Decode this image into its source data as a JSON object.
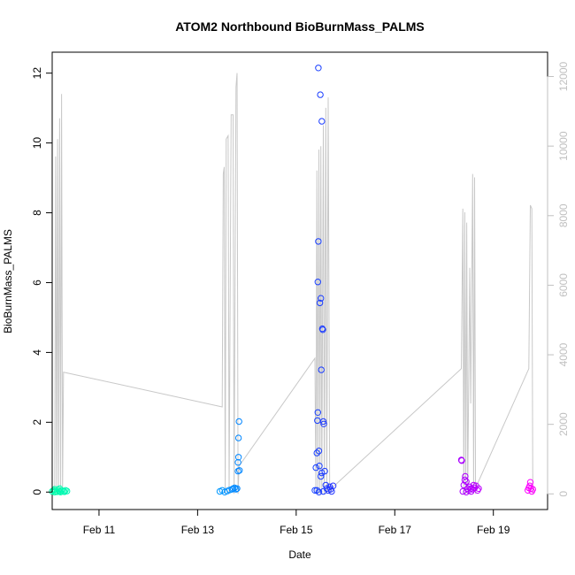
{
  "chart_data": {
    "type": "scatter",
    "title": "ATOM2 Northbound BioBurnMass_PALMS",
    "xlabel": "Date",
    "ylabel": "BioBurnMass_PALMS",
    "x_ticks": [
      "Feb 11",
      "Feb 13",
      "Feb 15",
      "Feb 17",
      "Feb 19"
    ],
    "x_tick_days": [
      11,
      13,
      15,
      17,
      19
    ],
    "xlim_days": [
      10.05,
      20.1
    ],
    "ylim": [
      -0.5,
      12.6
    ],
    "y_ticks": [
      0,
      2,
      4,
      6,
      8,
      10,
      12
    ],
    "y2lim": [
      -450,
      12700
    ],
    "y2_ticks": [
      0,
      2000,
      4000,
      6000,
      8000,
      10000,
      12000
    ],
    "y2_color": "#c0c0c0",
    "grid": false,
    "series": [
      {
        "kind": "points",
        "color_scale": [
          "#00ffaa",
          "#00c8ff",
          "#0050ff",
          "#7000ff",
          "#ff00ff"
        ],
        "points": [
          {
            "d": 10.05,
            "y": 0.02
          },
          {
            "d": 10.08,
            "y": 0.05
          },
          {
            "d": 10.1,
            "y": 0.0
          },
          {
            "d": 10.12,
            "y": 0.03
          },
          {
            "d": 10.15,
            "y": 0.01
          },
          {
            "d": 10.18,
            "y": 0.06
          },
          {
            "d": 10.2,
            "y": 0.02
          },
          {
            "d": 10.22,
            "y": 0.0
          },
          {
            "d": 10.25,
            "y": 0.04
          },
          {
            "d": 10.28,
            "y": 0.02
          },
          {
            "d": 10.3,
            "y": 0.01
          },
          {
            "d": 10.32,
            "y": 0.05
          },
          {
            "d": 10.35,
            "y": 0.03
          },
          {
            "d": 10.1,
            "y": 0.08
          },
          {
            "d": 10.2,
            "y": 0.1
          },
          {
            "d": 13.45,
            "y": 0.02
          },
          {
            "d": 13.5,
            "y": 0.05
          },
          {
            "d": 13.55,
            "y": 0.0
          },
          {
            "d": 13.6,
            "y": 0.03
          },
          {
            "d": 13.65,
            "y": 0.06
          },
          {
            "d": 13.7,
            "y": 0.08
          },
          {
            "d": 13.72,
            "y": 0.1
          },
          {
            "d": 13.75,
            "y": 0.12
          },
          {
            "d": 13.78,
            "y": 0.08
          },
          {
            "d": 13.8,
            "y": 0.1
          },
          {
            "d": 13.82,
            "y": 0.6
          },
          {
            "d": 13.82,
            "y": 0.85
          },
          {
            "d": 13.83,
            "y": 1.0
          },
          {
            "d": 13.83,
            "y": 1.55
          },
          {
            "d": 13.84,
            "y": 2.02
          },
          {
            "d": 13.85,
            "y": 0.62
          },
          {
            "d": 15.38,
            "y": 0.05
          },
          {
            "d": 15.4,
            "y": 0.7
          },
          {
            "d": 15.42,
            "y": 1.12
          },
          {
            "d": 15.43,
            "y": 2.05
          },
          {
            "d": 15.44,
            "y": 2.28
          },
          {
            "d": 15.44,
            "y": 6.02
          },
          {
            "d": 15.45,
            "y": 7.18
          },
          {
            "d": 15.45,
            "y": 12.15
          },
          {
            "d": 15.46,
            "y": 1.18
          },
          {
            "d": 15.47,
            "y": 0.75
          },
          {
            "d": 15.48,
            "y": 5.42
          },
          {
            "d": 15.49,
            "y": 11.38
          },
          {
            "d": 15.5,
            "y": 5.55
          },
          {
            "d": 15.51,
            "y": 3.5
          },
          {
            "d": 15.52,
            "y": 10.62
          },
          {
            "d": 15.53,
            "y": 4.68
          },
          {
            "d": 15.54,
            "y": 4.65
          },
          {
            "d": 15.55,
            "y": 2.02
          },
          {
            "d": 15.56,
            "y": 1.95
          },
          {
            "d": 15.52,
            "y": 0.55
          },
          {
            "d": 15.5,
            "y": 0.45
          },
          {
            "d": 15.58,
            "y": 0.6
          },
          {
            "d": 15.6,
            "y": 0.2
          },
          {
            "d": 15.62,
            "y": 0.1
          },
          {
            "d": 15.65,
            "y": 0.05
          },
          {
            "d": 15.68,
            "y": 0.15
          },
          {
            "d": 15.7,
            "y": 0.08
          },
          {
            "d": 15.72,
            "y": 0.02
          },
          {
            "d": 15.75,
            "y": 0.18
          },
          {
            "d": 15.42,
            "y": 0.05
          },
          {
            "d": 15.46,
            "y": 0.0
          },
          {
            "d": 15.55,
            "y": 0.02
          },
          {
            "d": 18.35,
            "y": 0.92
          },
          {
            "d": 18.36,
            "y": 0.9
          },
          {
            "d": 18.38,
            "y": 0.02
          },
          {
            "d": 18.4,
            "y": 0.2
          },
          {
            "d": 18.42,
            "y": 0.35
          },
          {
            "d": 18.43,
            "y": 0.45
          },
          {
            "d": 18.45,
            "y": 0.3
          },
          {
            "d": 18.48,
            "y": 0.1
          },
          {
            "d": 18.5,
            "y": 0.05
          },
          {
            "d": 18.52,
            "y": 0.15
          },
          {
            "d": 18.55,
            "y": 0.02
          },
          {
            "d": 18.58,
            "y": 0.08
          },
          {
            "d": 18.6,
            "y": 0.2
          },
          {
            "d": 18.62,
            "y": 0.12
          },
          {
            "d": 18.65,
            "y": 0.18
          },
          {
            "d": 18.68,
            "y": 0.05
          },
          {
            "d": 18.7,
            "y": 0.1
          },
          {
            "d": 18.45,
            "y": 0.0
          },
          {
            "d": 18.55,
            "y": 0.1
          },
          {
            "d": 19.7,
            "y": 0.05
          },
          {
            "d": 19.72,
            "y": 0.12
          },
          {
            "d": 19.74,
            "y": 0.18
          },
          {
            "d": 19.75,
            "y": 0.28
          },
          {
            "d": 19.76,
            "y": 0.1
          },
          {
            "d": 19.78,
            "y": 0.02
          },
          {
            "d": 19.8,
            "y": 0.08
          }
        ]
      },
      {
        "kind": "line",
        "axis": "right",
        "color": "#c8c8c8",
        "points": [
          {
            "d": 10.1,
            "y2": 0
          },
          {
            "d": 10.12,
            "y2": 9700
          },
          {
            "d": 10.14,
            "y2": 0
          },
          {
            "d": 10.16,
            "y2": 10200
          },
          {
            "d": 10.18,
            "y2": 0
          },
          {
            "d": 10.2,
            "y2": 10800
          },
          {
            "d": 10.22,
            "y2": 0
          },
          {
            "d": 10.24,
            "y2": 11500
          },
          {
            "d": 10.26,
            "y2": 0
          },
          {
            "d": 10.28,
            "y2": 3500
          },
          {
            "d": 13.5,
            "y2": 2500
          },
          {
            "d": 13.52,
            "y2": 9200
          },
          {
            "d": 13.54,
            "y2": 9400
          },
          {
            "d": 13.56,
            "y2": 0
          },
          {
            "d": 13.58,
            "y2": 10200
          },
          {
            "d": 13.62,
            "y2": 10300
          },
          {
            "d": 13.64,
            "y2": 0
          },
          {
            "d": 13.68,
            "y2": 10900
          },
          {
            "d": 13.72,
            "y2": 10900
          },
          {
            "d": 13.74,
            "y2": 0
          },
          {
            "d": 13.78,
            "y2": 11700
          },
          {
            "d": 13.8,
            "y2": 12100
          },
          {
            "d": 13.82,
            "y2": 0
          },
          {
            "d": 13.84,
            "y2": 800
          },
          {
            "d": 15.38,
            "y2": 3900
          },
          {
            "d": 15.4,
            "y2": 0
          },
          {
            "d": 15.42,
            "y2": 9300
          },
          {
            "d": 15.44,
            "y2": 0
          },
          {
            "d": 15.46,
            "y2": 9900
          },
          {
            "d": 15.48,
            "y2": 0
          },
          {
            "d": 15.5,
            "y2": 10000
          },
          {
            "d": 15.52,
            "y2": 0
          },
          {
            "d": 15.55,
            "y2": 10600
          },
          {
            "d": 15.57,
            "y2": 0
          },
          {
            "d": 15.6,
            "y2": 11100
          },
          {
            "d": 15.62,
            "y2": 0
          },
          {
            "d": 15.65,
            "y2": 11400
          },
          {
            "d": 15.68,
            "y2": 0
          },
          {
            "d": 15.75,
            "y2": 200
          },
          {
            "d": 18.35,
            "y2": 3600
          },
          {
            "d": 18.38,
            "y2": 8200
          },
          {
            "d": 18.4,
            "y2": 0
          },
          {
            "d": 18.42,
            "y2": 8100
          },
          {
            "d": 18.44,
            "y2": 0
          },
          {
            "d": 18.46,
            "y2": 7800
          },
          {
            "d": 18.48,
            "y2": 0
          },
          {
            "d": 18.52,
            "y2": 6500
          },
          {
            "d": 18.54,
            "y2": 2600
          },
          {
            "d": 18.58,
            "y2": 9200
          },
          {
            "d": 18.6,
            "y2": 0
          },
          {
            "d": 18.62,
            "y2": 9100
          },
          {
            "d": 18.64,
            "y2": 0
          },
          {
            "d": 18.68,
            "y2": 300
          },
          {
            "d": 19.72,
            "y2": 3600
          },
          {
            "d": 19.75,
            "y2": 8300
          },
          {
            "d": 19.78,
            "y2": 8200
          },
          {
            "d": 19.8,
            "y2": 0
          }
        ]
      }
    ]
  }
}
